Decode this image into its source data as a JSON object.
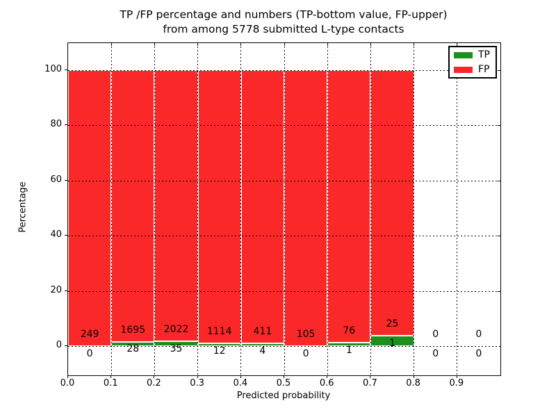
{
  "figure": {
    "title_line1": "TP /FP percentage and numbers (TP-bottom value, FP-upper)",
    "title_line2": "from among 5778 submitted L-type contacts"
  },
  "chart_data": {
    "type": "bar",
    "stacked": true,
    "normalized_to": 100,
    "title": "TP /FP percentage and numbers (TP-bottom value, FP-upper) from among 5778 submitted L-type contacts",
    "xlabel": "Predicted probability",
    "ylabel": "Percentage",
    "categories": [
      0.0,
      0.1,
      0.2,
      0.3,
      0.4,
      0.5,
      0.6,
      0.7,
      0.8,
      0.9
    ],
    "bin_width": 0.1,
    "series": [
      {
        "name": "TP",
        "color": "#1e8f1e",
        "values": [
          0,
          28,
          35,
          12,
          4,
          0,
          1,
          1,
          0,
          0
        ]
      },
      {
        "name": "FP",
        "color": "#fa2828",
        "values": [
          249,
          1695,
          2022,
          1114,
          411,
          105,
          76,
          25,
          0,
          0
        ]
      }
    ],
    "tp_count_labels": [
      "0",
      "28",
      "35",
      "12",
      "4",
      "0",
      "1",
      "1",
      "0",
      "0"
    ],
    "fp_count_labels": [
      "249",
      "1695",
      "2022",
      "1114",
      "411",
      "105",
      "76",
      "25",
      "0",
      "0"
    ],
    "total_submitted": 5778,
    "xtick_labels": [
      "0.0",
      "0.1",
      "0.2",
      "0.3",
      "0.4",
      "0.5",
      "0.6",
      "0.7",
      "0.8",
      "0.9"
    ],
    "ytick_values": [
      0,
      20,
      40,
      60,
      80,
      100
    ],
    "ytick_labels": [
      "0",
      "20",
      "40",
      "60",
      "80",
      "100"
    ],
    "xlim": [
      0.0,
      1.0
    ],
    "ylim": [
      -10.5,
      109.7
    ],
    "grid": "dotted black, drawn above bars",
    "legend_position": "upper right"
  },
  "legend": {
    "items": [
      {
        "label": "TP",
        "color": "#1e8f1e"
      },
      {
        "label": "FP",
        "color": "#fa2828"
      }
    ]
  }
}
